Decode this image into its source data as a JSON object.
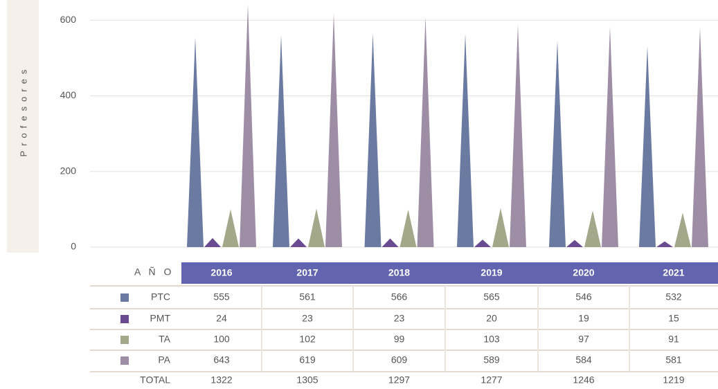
{
  "chart_data": {
    "type": "spike",
    "ylabel": "Profesores",
    "year_label": "A Ñ O",
    "categories": [
      "2016",
      "2017",
      "2018",
      "2019",
      "2020",
      "2021"
    ],
    "series": [
      {
        "name": "PTC",
        "color": "#6a7aa0",
        "values": [
          555,
          561,
          566,
          565,
          546,
          532
        ]
      },
      {
        "name": "PMT",
        "color": "#6a4a90",
        "values": [
          24,
          23,
          23,
          20,
          19,
          15
        ]
      },
      {
        "name": "TA",
        "color": "#a3a88a",
        "values": [
          100,
          102,
          99,
          103,
          97,
          91
        ]
      },
      {
        "name": "PA",
        "color": "#9d8ea6",
        "values": [
          643,
          619,
          609,
          589,
          584,
          581
        ]
      }
    ],
    "total_label": "TOTAL",
    "totals": [
      1322,
      1305,
      1297,
      1277,
      1246,
      1219
    ],
    "ylim": [
      0,
      650
    ],
    "yticks": [
      0,
      200,
      400,
      600
    ],
    "grid": true,
    "header_color": "#6264b0"
  }
}
